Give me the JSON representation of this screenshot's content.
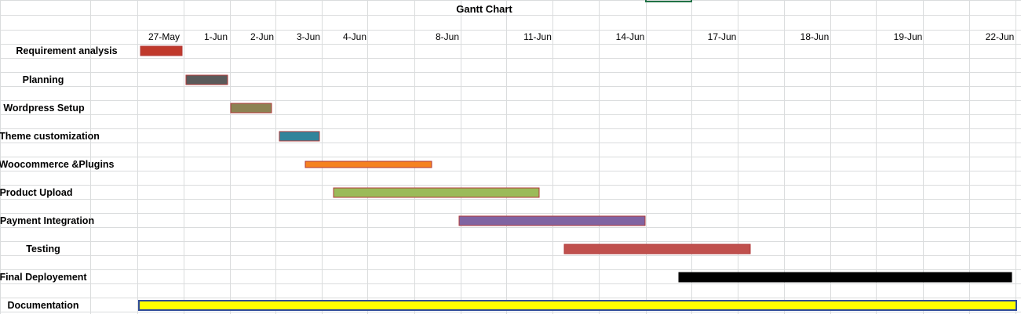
{
  "chart_data": {
    "type": "gantt",
    "title": "Gantt Chart",
    "date_ticks": [
      "27-May",
      "1-Jun",
      "2-Jun",
      "3-Jun",
      "4-Jun",
      "8-Jun",
      "11-Jun",
      "14-Jun",
      "17-Jun",
      "18-Jun",
      "19-Jun",
      "22-Jun"
    ],
    "tasks": [
      {
        "label": "Requirement analysis",
        "start": "27-May",
        "end": "1-Jun",
        "color": "#c0392b"
      },
      {
        "label": "Planning",
        "start": "1-Jun",
        "end": "2-Jun",
        "color": "#5a5a5a"
      },
      {
        "label": "Wordpress Setup",
        "start": "2-Jun",
        "end": "3-Jun",
        "color": "#8c8252"
      },
      {
        "label": "Theme customization",
        "start": "3-Jun",
        "end": "4-Jun",
        "color": "#31849b"
      },
      {
        "label": "Woocommerce &Plugins",
        "start": "4-Jun",
        "end": "8-Jun",
        "color": "#f58220"
      },
      {
        "label": "Product Upload",
        "start": "4-Jun",
        "end": "11-Jun",
        "color": "#9bbb59"
      },
      {
        "label": "Payment Integration",
        "start": "8-Jun",
        "end": "14-Jun",
        "color": "#8064a2"
      },
      {
        "label": "Testing",
        "start": "11-Jun",
        "end": "17-Jun",
        "color": "#c0504d"
      },
      {
        "label": "Final Deployement",
        "start": "17-Jun",
        "end": "22-Jun",
        "color": "#000000"
      },
      {
        "label": "Documentation",
        "start": "27-May",
        "end": "22-Jun",
        "color": "#ffff00"
      }
    ]
  }
}
